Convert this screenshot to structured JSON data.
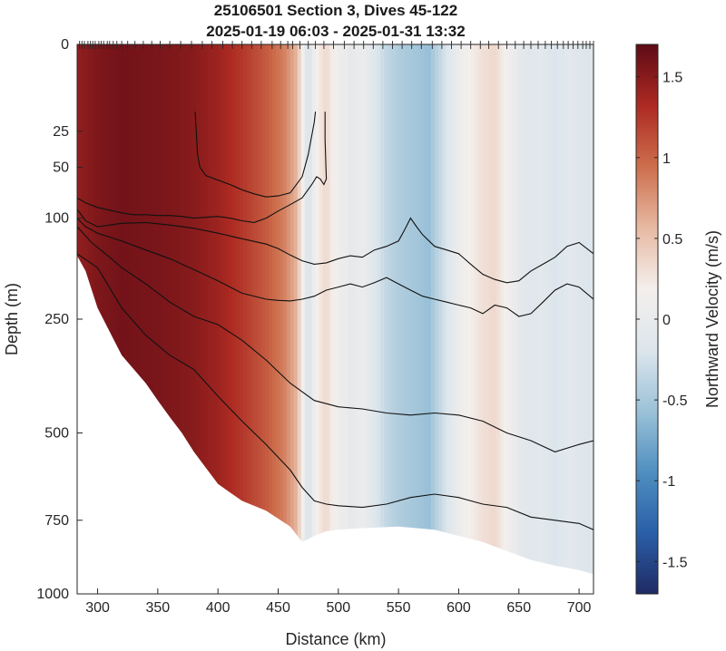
{
  "chart_data": {
    "type": "heatmap",
    "title": "25106501 Section 3, Dives 45-122",
    "subtitle": "2025-01-19 06:03 - 2025-01-31 13:32",
    "xlabel": "Distance (km)",
    "ylabel": "Depth (m)",
    "colorbar_label": "Northward Velocity (m/s)",
    "xlim": [
      283,
      712
    ],
    "ylim": [
      0,
      1000
    ],
    "y_scale": "square-root (depth axis reversed, 0 at top)",
    "x_ticks": [
      300,
      350,
      400,
      450,
      500,
      550,
      600,
      650,
      700
    ],
    "y_ticks": [
      0,
      25,
      50,
      100,
      250,
      500,
      750,
      1000
    ],
    "colorbar_range": [
      -1.7,
      1.7
    ],
    "colorbar_ticks": [
      "1.5",
      "1",
      "0.5",
      "0",
      "-0.5",
      "-1",
      "-1.5"
    ],
    "colorbar_tick_values": [
      1.5,
      1,
      0.5,
      0,
      -0.5,
      -1,
      -1.5
    ],
    "colormap": [
      "#1f2a63",
      "#2a5fa8",
      "#4f8fc0",
      "#9cc2d8",
      "#dde6ec",
      "#f4efec",
      "#e7b9a2",
      "#cd6e4c",
      "#ad2a22",
      "#5e0b16"
    ],
    "velocity_profile": {
      "distance_km": [
        283,
        300,
        320,
        340,
        360,
        380,
        400,
        420,
        440,
        455,
        465,
        470,
        475,
        480,
        485,
        490,
        495,
        500,
        510,
        520,
        530,
        540,
        550,
        560,
        570,
        575,
        580,
        590,
        600,
        610,
        620,
        630,
        640,
        650,
        660,
        670,
        680,
        690,
        700,
        712
      ],
      "velocity_ms": [
        1.45,
        1.55,
        1.6,
        1.58,
        1.55,
        1.5,
        1.4,
        1.25,
        1.05,
        0.85,
        0.6,
        0.2,
        -0.3,
        0.1,
        0.25,
        0.35,
        0.2,
        0.1,
        -0.05,
        0.05,
        -0.15,
        -0.35,
        -0.45,
        -0.5,
        -0.55,
        -0.6,
        -0.45,
        -0.2,
        0.05,
        0.2,
        0.3,
        0.35,
        0.15,
        -0.05,
        -0.15,
        -0.1,
        -0.2,
        -0.1,
        -0.15,
        -0.2
      ]
    },
    "bottom_depth": {
      "distance_km": [
        283,
        290,
        300,
        320,
        340,
        350,
        360,
        370,
        380,
        400,
        420,
        440,
        460,
        470,
        480,
        490,
        500,
        520,
        550,
        580,
        600,
        620,
        640,
        660,
        680,
        700,
        712
      ],
      "depth_m": [
        148,
        170,
        230,
        320,
        380,
        420,
        460,
        500,
        550,
        640,
        690,
        720,
        770,
        820,
        800,
        785,
        780,
        775,
        770,
        780,
        800,
        820,
        850,
        880,
        900,
        915,
        930
      ]
    },
    "dive_marks_km": [
      285,
      287,
      289,
      292,
      294,
      296,
      298,
      301,
      303,
      305,
      308,
      310,
      313,
      316,
      320,
      325,
      331,
      338,
      345,
      352,
      360,
      369,
      378,
      387,
      395,
      404,
      412,
      420,
      428,
      436,
      445,
      452,
      458,
      462,
      468,
      475,
      481,
      488,
      496,
      505,
      513,
      521,
      529,
      537,
      545,
      553,
      561,
      569,
      578,
      586,
      594,
      602,
      610,
      618,
      625,
      633,
      640,
      647,
      654,
      660,
      666,
      672,
      677,
      682,
      687,
      691,
      695,
      699,
      703,
      706,
      709,
      712
    ],
    "series": [
      {
        "x": [
          381,
          382,
          383,
          385,
          390,
          400,
          410,
          420,
          430,
          440,
          450,
          460,
          470,
          475,
          480,
          481
        ],
        "y": [
          15,
          25,
          40,
          50,
          57,
          61,
          65,
          70,
          74,
          77,
          76,
          73,
          58,
          40,
          20,
          15
        ]
      },
      {
        "x": [
          489,
          489,
          490,
          488,
          485,
          482,
          478,
          470,
          460,
          450,
          440,
          430,
          420,
          410,
          400,
          390,
          380,
          370,
          360,
          350,
          340,
          330,
          320,
          310,
          300,
          290,
          283
        ],
        "y": [
          15,
          30,
          60,
          65,
          60,
          58,
          65,
          78,
          85,
          92,
          100,
          105,
          103,
          100,
          98,
          99,
          100,
          98,
          97,
          97,
          96,
          96,
          94,
          91,
          88,
          83,
          78
        ]
      },
      {
        "x": [
          283,
          290,
          300,
          320,
          340,
          360,
          380,
          400,
          420,
          440,
          450,
          460,
          470,
          480,
          490,
          500,
          510,
          520,
          530,
          540,
          550,
          555,
          560,
          565,
          570,
          580,
          590,
          600,
          610,
          620,
          630,
          640,
          650,
          660,
          670,
          680,
          690,
          700,
          712
        ],
        "y": [
          90,
          103,
          110,
          106,
          105,
          108,
          112,
          118,
          125,
          132,
          138,
          147,
          155,
          160,
          158,
          152,
          148,
          150,
          140,
          135,
          128,
          114,
          100,
          110,
          120,
          135,
          140,
          145,
          160,
          175,
          183,
          188,
          185,
          170,
          160,
          150,
          135,
          130,
          145
        ]
      },
      {
        "x": [
          283,
          290,
          300,
          320,
          340,
          360,
          380,
          400,
          420,
          440,
          450,
          460,
          470,
          480,
          490,
          500,
          510,
          520,
          530,
          540,
          550,
          560,
          570,
          580,
          590,
          600,
          610,
          620,
          630,
          640,
          650,
          660,
          670,
          680,
          690,
          700,
          712
        ],
        "y": [
          100,
          110,
          118,
          128,
          140,
          152,
          168,
          185,
          205,
          215,
          217,
          218,
          215,
          210,
          200,
          195,
          190,
          195,
          188,
          180,
          190,
          200,
          210,
          215,
          220,
          225,
          230,
          240,
          225,
          230,
          245,
          240,
          220,
          200,
          190,
          195,
          215
        ]
      },
      {
        "x": [
          283,
          295,
          310,
          320,
          340,
          360,
          380,
          400,
          420,
          440,
          460,
          480,
          500,
          520,
          540,
          560,
          580,
          600,
          620,
          640,
          660,
          680,
          700,
          712
        ],
        "y": [
          110,
          130,
          150,
          165,
          190,
          220,
          245,
          260,
          290,
          330,
          380,
          420,
          435,
          440,
          450,
          455,
          450,
          455,
          470,
          500,
          520,
          550,
          530,
          520
        ]
      },
      {
        "x": [
          283,
          300,
          320,
          340,
          360,
          380,
          400,
          420,
          440,
          460,
          470,
          480,
          490,
          500,
          520,
          540,
          560,
          580,
          600,
          620,
          640,
          660,
          680,
          700,
          712
        ],
        "y": [
          145,
          165,
          230,
          280,
          320,
          350,
          410,
          470,
          530,
          600,
          650,
          690,
          700,
          705,
          710,
          700,
          680,
          670,
          680,
          700,
          710,
          740,
          750,
          760,
          780
        ]
      }
    ]
  }
}
